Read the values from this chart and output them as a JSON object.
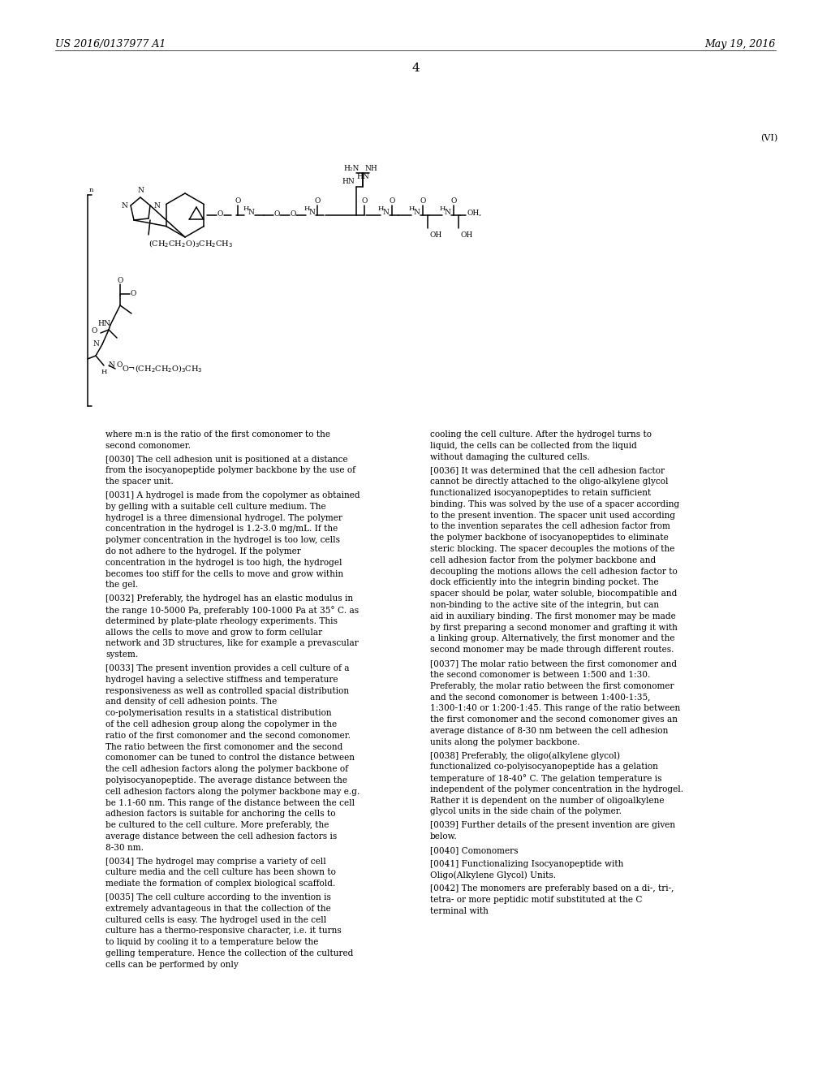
{
  "bg_color": "#ffffff",
  "header_left": "US 2016/0137977 A1",
  "header_right": "May 19, 2016",
  "page_number": "4",
  "formula_label": "(VI)",
  "left_col_paragraphs": [
    {
      "indent": false,
      "text": "where m:n is the ratio of the first comonomer to the second comonomer."
    },
    {
      "indent": true,
      "tag": "[0030]",
      "text": "The cell adhesion unit is positioned at a distance from the isocyanopeptide polymer backbone by the use of the spacer unit."
    },
    {
      "indent": true,
      "tag": "[0031]",
      "text": "A hydrogel is made from the copolymer as obtained by gelling with a suitable cell culture medium. The hydrogel is a three dimensional hydrogel. The polymer concentration in the hydrogel is 1.2-3.0 mg/mL. If the polymer concentration in the hydrogel is too low, cells do not adhere to the hydrogel. If the polymer concentration in the hydrogel is too high, the hydrogel becomes too stiff for the cells to move and grow within the gel."
    },
    {
      "indent": true,
      "tag": "[0032]",
      "text": "Preferably, the hydrogel has an elastic modulus in the range 10-5000 Pa, preferably 100-1000 Pa at 35° C. as determined by plate-plate rheology experiments. This allows the cells to move and grow to form cellular network and 3D structures, like for example a prevascular system."
    },
    {
      "indent": true,
      "tag": "[0033]",
      "text": "The present invention provides a cell culture of a hydrogel having a selective stiffness and temperature responsiveness as well as controlled spacial distribution and density of cell adhesion points. The co-polymerisation results in a statistical distribution of the cell adhesion group along the copolymer in the ratio of the first comonomer and the second comonomer. The ratio between the first comonomer and the second comonomer can be tuned to control the distance between the cell adhesion factors along the polymer backbone of polyisocyanopeptide. The average distance between the cell adhesion factors along the polymer backbone may e.g. be 1.1-60 nm. This range of the distance between the cell adhesion factors is suitable for anchoring the cells to be cultured to the cell culture. More preferably, the average distance between the cell adhesion factors is 8-30 nm."
    },
    {
      "indent": true,
      "tag": "[0034]",
      "text": "The hydrogel may comprise a variety of cell culture media and the cell culture has been shown to mediate the formation of complex biological scaffold."
    },
    {
      "indent": true,
      "tag": "[0035]",
      "text": "The cell culture according to the invention is extremely advantageous in that the collection of the cultured cells is easy. The hydrogel used in the cell culture has a thermo-responsive character, i.e. it turns to liquid by cooling it to a temperature below the gelling temperature. Hence the collection of the cultured cells can be performed by only"
    }
  ],
  "right_col_paragraphs": [
    {
      "indent": false,
      "text": "cooling the cell culture. After the hydrogel turns to liquid, the cells can be collected from the liquid without damaging the cultured cells."
    },
    {
      "indent": true,
      "tag": "[0036]",
      "text": "It was determined that the cell adhesion factor cannot be directly attached to the oligo-alkylene glycol functionalized isocyanopeptides to retain sufficient binding. This was solved by the use of a spacer according to the present invention. The spacer unit used according to the invention separates the cell adhesion factor from the polymer backbone of isocyanopeptides to eliminate steric blocking. The spacer decouples the motions of the cell adhesion factor from the polymer backbone and decoupling the motions allows the cell adhesion factor to dock efficiently into the integrin binding pocket. The spacer should be polar, water soluble, biocompatible and non-binding to the active site of the integrin, but can aid in auxiliary binding. The first monomer may be made by first preparing a second monomer and grafting it with a linking group. Alternatively, the first monomer and the second monomer may be made through different routes."
    },
    {
      "indent": true,
      "tag": "[0037]",
      "text": "The molar ratio between the first comonomer and the second comonomer is between 1:500 and 1:30. Preferably, the molar ratio between the first comonomer and the second comonomer is between 1:400-1:35, 1:300-1:40 or 1:200-1:45. This range of the ratio between the first comonomer and the second comonomer gives an average distance of 8-30 nm between the cell adhesion units along the polymer backbone."
    },
    {
      "indent": true,
      "tag": "[0038]",
      "text": "Preferably, the oligo(alkylene glycol) functionalized co-polyisocyanopeptide has a gelation temperature of 18-40° C. The gelation temperature is independent of the polymer concentration in the hydrogel. Rather it is dependent on the number of oligoalkylene glycol units in the side chain of the polymer."
    },
    {
      "indent": true,
      "tag": "[0039]",
      "text": "Further details of the present invention are given below."
    },
    {
      "indent": true,
      "tag": "[0040]",
      "text": "Comonomers"
    },
    {
      "indent": true,
      "tag": "[0041]",
      "text": "Functionalizing Isocyanopeptide with Oligo(Alkylene Glycol) Units."
    },
    {
      "indent": true,
      "tag": "[0042]",
      "text": "The monomers are preferably based on a di-, tri-, tetra- or more peptidic motif substituted at the C terminal with"
    }
  ]
}
